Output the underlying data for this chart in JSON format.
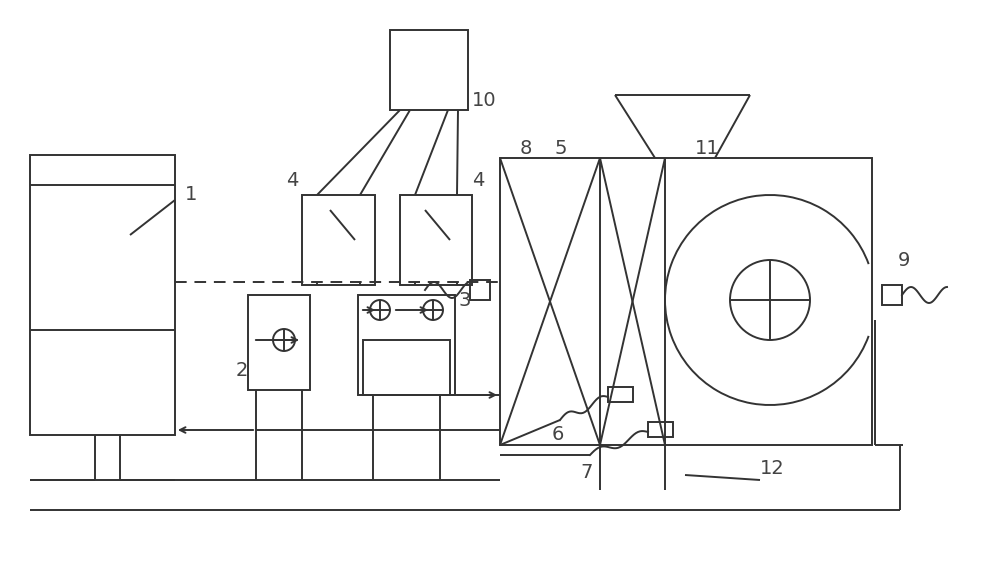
{
  "bg_color": "#ffffff",
  "line_color": "#333333",
  "fig_width": 10.0,
  "fig_height": 5.68,
  "dpi": 100
}
